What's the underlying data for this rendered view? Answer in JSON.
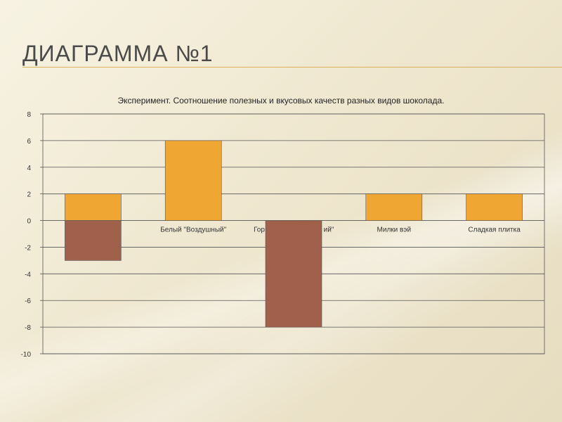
{
  "slide": {
    "title": "ДИАГРАММА №1"
  },
  "colors": {
    "positive": "#f0a632",
    "negative": "#a0604c",
    "grid": "#555555",
    "accent": "#d8b35a"
  },
  "chart_data": {
    "type": "bar",
    "title": "Эксперимент. Соотношение полезных и вкусовых качеств разных видов шоколада.",
    "categories": [
      "",
      "Белый \"Воздушный\"",
      "Горький \"Пористый\"",
      "Милки вэй",
      "Сладкая плитка"
    ],
    "visible_category_labels": [
      "",
      "Белый \"Воздушный\"",
      "Гор",
      "ий\"",
      "Милки вэй",
      "Сладкая плитка"
    ],
    "series": [
      {
        "values": [
          2,
          6,
          0,
          2,
          2
        ]
      },
      {
        "values": [
          -3,
          0,
          -8,
          0,
          0
        ]
      }
    ],
    "ylim": [
      -10,
      8
    ],
    "yticks": [
      8,
      6,
      4,
      2,
      0,
      -2,
      -4,
      -6,
      -8,
      -10
    ],
    "grid": true,
    "legend": "none"
  }
}
